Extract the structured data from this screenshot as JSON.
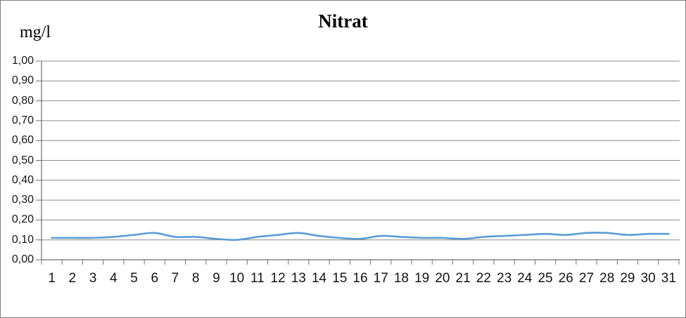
{
  "window": {
    "background": "#ffffff",
    "border_color": "#7f7f7f"
  },
  "chart_data": {
    "type": "line",
    "title": "Nitrat",
    "ylabel": "mg/l",
    "xlabel": "",
    "x": [
      1,
      2,
      3,
      4,
      5,
      6,
      7,
      8,
      9,
      10,
      11,
      12,
      13,
      14,
      15,
      16,
      17,
      18,
      19,
      20,
      21,
      22,
      23,
      24,
      25,
      26,
      27,
      28,
      29,
      30,
      31
    ],
    "xtick_labels": [
      "1",
      "2",
      "3",
      "4",
      "5",
      "6",
      "7",
      "8",
      "9",
      "10",
      "11",
      "12",
      "13",
      "14",
      "15",
      "16",
      "17",
      "18",
      "19",
      "20",
      "21",
      "22",
      "23",
      "24",
      "25",
      "26",
      "27",
      "28",
      "29",
      "30",
      "31"
    ],
    "series": [
      {
        "name": "Nitrat",
        "color": "#5b9bd5",
        "smoothed": true,
        "values": [
          0.11,
          0.11,
          0.11,
          0.115,
          0.125,
          0.135,
          0.115,
          0.115,
          0.105,
          0.1,
          0.115,
          0.125,
          0.135,
          0.12,
          0.11,
          0.105,
          0.12,
          0.115,
          0.11,
          0.11,
          0.105,
          0.115,
          0.12,
          0.125,
          0.13,
          0.125,
          0.135,
          0.135,
          0.125,
          0.13,
          0.13
        ]
      }
    ],
    "ylim": [
      0.0,
      1.0
    ],
    "ytick_step": 0.1,
    "ytick_labels": [
      "0,00",
      "0,10",
      "0,20",
      "0,30",
      "0,40",
      "0,50",
      "0,60",
      "0,70",
      "0,80",
      "0,90",
      "1,00"
    ],
    "decimal_separator": ",",
    "grid": "horizontal-major",
    "legend": "none",
    "gridline_color": "#8c8c8c",
    "axis_color": "#6f6f6f",
    "tick_color": "#6f6f6f",
    "text_color": "#141414"
  }
}
